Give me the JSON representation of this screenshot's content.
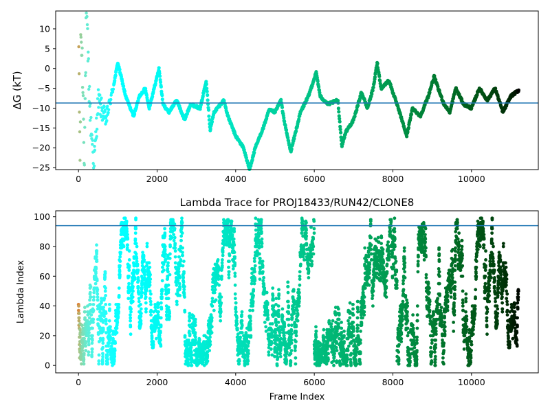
{
  "chart_data": [
    {
      "type": "scatter",
      "title": "",
      "xlabel": "",
      "ylabel": "ΔG (kT)",
      "xlim": [
        -580,
        11700
      ],
      "ylim": [
        -25.5,
        14.5
      ],
      "xticks": [
        0,
        2000,
        4000,
        6000,
        8000,
        10000
      ],
      "yticks": [
        -25,
        -20,
        -15,
        -10,
        -5,
        0,
        5,
        10
      ],
      "xtick_labels": [
        "0",
        "2000",
        "4000",
        "6000",
        "8000",
        "10000"
      ],
      "ytick_labels": [
        "−25",
        "−20",
        "−15",
        "−10",
        "−5",
        "0",
        "5",
        "10"
      ],
      "reference_line_y": -8.7,
      "reference_line_color": "#1f77b4",
      "colormap": "rainbow (colored by frame index)",
      "points_trace": [
        [
          0,
          13
        ],
        [
          40,
          -24.6
        ],
        [
          60,
          10
        ],
        [
          100,
          1
        ],
        [
          150,
          -22
        ],
        [
          200,
          14
        ],
        [
          300,
          -12
        ],
        [
          400,
          -24
        ],
        [
          500,
          -8
        ],
        [
          700,
          -13
        ],
        [
          900,
          -4
        ],
        [
          1000,
          1.5
        ],
        [
          1200,
          -7
        ],
        [
          1400,
          -12
        ],
        [
          1550,
          -7
        ],
        [
          1700,
          -5
        ],
        [
          1800,
          -10
        ],
        [
          1950,
          -4
        ],
        [
          2050,
          0
        ],
        [
          2150,
          -9
        ],
        [
          2300,
          -11
        ],
        [
          2500,
          -8
        ],
        [
          2700,
          -13
        ],
        [
          2850,
          -9
        ],
        [
          3100,
          -10
        ],
        [
          3250,
          -3
        ],
        [
          3350,
          -15.5
        ],
        [
          3450,
          -11
        ],
        [
          3700,
          -8
        ],
        [
          3800,
          -12
        ],
        [
          4000,
          -17
        ],
        [
          4200,
          -20
        ],
        [
          4350,
          -25.5
        ],
        [
          4500,
          -20
        ],
        [
          4700,
          -15
        ],
        [
          4850,
          -10.5
        ],
        [
          5000,
          -11
        ],
        [
          5150,
          -8
        ],
        [
          5250,
          -14
        ],
        [
          5400,
          -21
        ],
        [
          5550,
          -15
        ],
        [
          5650,
          -11
        ],
        [
          5850,
          -7
        ],
        [
          6050,
          -1
        ],
        [
          6150,
          -7
        ],
        [
          6350,
          -9
        ],
        [
          6600,
          -8
        ],
        [
          6700,
          -19.5
        ],
        [
          6800,
          -16
        ],
        [
          7000,
          -13
        ],
        [
          7200,
          -6
        ],
        [
          7350,
          -10
        ],
        [
          7500,
          -5
        ],
        [
          7600,
          1.5
        ],
        [
          7700,
          -5
        ],
        [
          7900,
          -3
        ],
        [
          8100,
          -9
        ],
        [
          8200,
          -12
        ],
        [
          8350,
          -17
        ],
        [
          8500,
          -10
        ],
        [
          8700,
          -12
        ],
        [
          8900,
          -7
        ],
        [
          9050,
          -2
        ],
        [
          9150,
          -5
        ],
        [
          9300,
          -9
        ],
        [
          9450,
          -11
        ],
        [
          9600,
          -5
        ],
        [
          9800,
          -9
        ],
        [
          10000,
          -10
        ],
        [
          10200,
          -5
        ],
        [
          10400,
          -8
        ],
        [
          10600,
          -5
        ],
        [
          10800,
          -11
        ],
        [
          11000,
          -7
        ],
        [
          11200,
          -5.5
        ]
      ]
    },
    {
      "type": "scatter",
      "title": "Lambda Trace for PROJ18433/RUN42/CLONE8",
      "xlabel": "Frame Index",
      "ylabel": "Lambda Index",
      "xlim": [
        -580,
        11700
      ],
      "ylim": [
        -5,
        104
      ],
      "xticks": [
        0,
        2000,
        4000,
        6000,
        8000,
        10000
      ],
      "yticks": [
        0,
        20,
        40,
        60,
        80,
        100
      ],
      "xtick_labels": [
        "0",
        "2000",
        "4000",
        "6000",
        "8000",
        "10000"
      ],
      "ytick_labels": [
        "0",
        "20",
        "40",
        "60",
        "80",
        "100"
      ],
      "reference_line_y": 94,
      "reference_line_color": "#1f77b4",
      "colormap": "rainbow (colored by frame index)",
      "frame_range": [
        0,
        11200
      ],
      "lambda_range": [
        0,
        99
      ],
      "description": "dense random walk of lambda index across frames 0-11200 spanning 0-99"
    }
  ]
}
